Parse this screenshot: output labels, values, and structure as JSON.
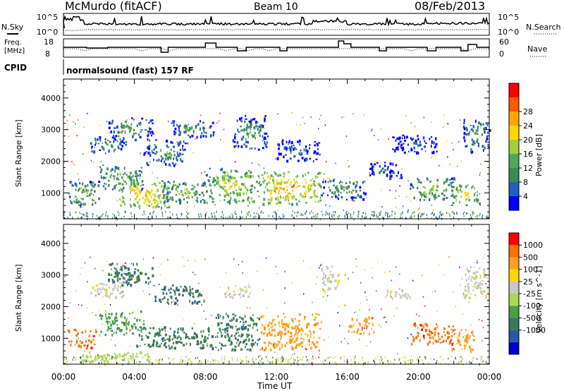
{
  "header": {
    "station": "McMurdo (fitACF)",
    "beam": "Beam 10",
    "date": "08/Feb/2013"
  },
  "sky_panel": {
    "left_label": "N.Sky",
    "right_label": "N.Search",
    "left_ticks": [
      "10^5",
      "10^0"
    ],
    "right_ticks": [
      "10^5",
      "10^0"
    ]
  },
  "freq_panel": {
    "left_label_1": "Freq.",
    "left_label_2": "[MHz]",
    "left_ticks": [
      "18",
      "8"
    ],
    "right_label": "Nave",
    "right_ticks": [
      "60",
      "0"
    ]
  },
  "cpid_panel": {
    "label": "CPID",
    "mode": "normalsound (fast) 157 RF"
  },
  "chart_data": [
    {
      "type": "heatmap",
      "title": "Power",
      "xlabel": "Time UT",
      "ylabel": "Slant Range [km]",
      "xlim": [
        0,
        24
      ],
      "ylim": [
        180,
        4600
      ],
      "x_ticks": [
        "00:00",
        "04:00",
        "08:00",
        "12:00",
        "16:00",
        "20:00",
        "00:00"
      ],
      "y_ticks": [
        1000,
        2000,
        3000,
        4000
      ],
      "colorbar": {
        "label": "Power [dB]",
        "ticks": [
          "4",
          "8",
          "12",
          "16",
          "20",
          "24",
          "28"
        ],
        "colors": [
          "#0000ff",
          "#2060c0",
          "#3a8a58",
          "#52a85a",
          "#9ed23c",
          "#ffd700",
          "#ffa500",
          "#ff5a00",
          "#ff0000"
        ]
      },
      "regions": [
        {
          "t": [
            0.2,
            2.0
          ],
          "r": [
            600,
            1400
          ],
          "level": 4
        },
        {
          "t": [
            1.5,
            3.5
          ],
          "r": [
            2300,
            2800
          ],
          "level": 3
        },
        {
          "t": [
            2.0,
            4.5
          ],
          "r": [
            1100,
            1900
          ],
          "level": 4
        },
        {
          "t": [
            2.5,
            5.0
          ],
          "r": [
            2700,
            3400
          ],
          "level": 3
        },
        {
          "t": [
            3.0,
            6.0
          ],
          "r": [
            550,
            1400
          ],
          "level": 6
        },
        {
          "t": [
            4.5,
            7.0
          ],
          "r": [
            1900,
            2700
          ],
          "level": 3
        },
        {
          "t": [
            5.5,
            8.0
          ],
          "r": [
            700,
            1400
          ],
          "level": 4
        },
        {
          "t": [
            6.0,
            8.5
          ],
          "r": [
            2800,
            3300
          ],
          "level": 3
        },
        {
          "t": [
            8.0,
            11.0
          ],
          "r": [
            700,
            1800
          ],
          "level": 5
        },
        {
          "t": [
            9.5,
            11.5
          ],
          "r": [
            2400,
            3500
          ],
          "level": 3
        },
        {
          "t": [
            11.0,
            14.5
          ],
          "r": [
            650,
            1700
          ],
          "level": 6
        },
        {
          "t": [
            12.0,
            14.5
          ],
          "r": [
            2000,
            2700
          ],
          "level": 2
        },
        {
          "t": [
            14.5,
            17.0
          ],
          "r": [
            800,
            1500
          ],
          "level": 3
        },
        {
          "t": [
            17.0,
            19.0
          ],
          "r": [
            1500,
            2000
          ],
          "level": 2
        },
        {
          "t": [
            18.5,
            21.0
          ],
          "r": [
            2300,
            2900
          ],
          "level": 2
        },
        {
          "t": [
            19.5,
            22.0
          ],
          "r": [
            800,
            1500
          ],
          "level": 4
        },
        {
          "t": [
            21.8,
            23.5
          ],
          "r": [
            600,
            1300
          ],
          "level": 5
        },
        {
          "t": [
            22.5,
            24.0
          ],
          "r": [
            2300,
            3400
          ],
          "level": 3
        }
      ]
    },
    {
      "type": "heatmap",
      "title": "Velocity",
      "xlabel": "Time UT",
      "ylabel": "Slant Range [km]",
      "xlim": [
        0,
        24
      ],
      "ylim": [
        180,
        4600
      ],
      "x_ticks": [
        "00:00",
        "04:00",
        "08:00",
        "12:00",
        "16:00",
        "20:00",
        "00:00"
      ],
      "y_ticks": [
        1000,
        2000,
        3000,
        4000
      ],
      "colorbar": {
        "label": "Velocity [m s^-1]",
        "ticks": [
          "1000",
          "500",
          "100",
          "25",
          "-25",
          "-100",
          "-500",
          "-1000"
        ],
        "colors": [
          "#0000cc",
          "#2858a8",
          "#3a7a58",
          "#48a048",
          "#a8d850",
          "#c8c8c8",
          "#ffd700",
          "#ffa020",
          "#ff7000",
          "#ff0000"
        ]
      },
      "regions": [
        {
          "t": [
            0.2,
            1.8
          ],
          "r": [
            700,
            1300
          ],
          "level": 8
        },
        {
          "t": [
            1.0,
            5.0
          ],
          "r": [
            280,
            600
          ],
          "level": 4
        },
        {
          "t": [
            1.5,
            3.5
          ],
          "r": [
            2300,
            2800
          ],
          "level": 5
        },
        {
          "t": [
            2.0,
            4.5
          ],
          "r": [
            1100,
            1900
          ],
          "level": 3
        },
        {
          "t": [
            2.5,
            5.0
          ],
          "r": [
            2700,
            3400
          ],
          "level": 2
        },
        {
          "t": [
            4.0,
            8.5
          ],
          "r": [
            700,
            1400
          ],
          "level": 2
        },
        {
          "t": [
            5.0,
            8.0
          ],
          "r": [
            2100,
            2700
          ],
          "level": 2
        },
        {
          "t": [
            8.5,
            11.0
          ],
          "r": [
            650,
            1800
          ],
          "level": 2
        },
        {
          "t": [
            9.0,
            10.5
          ],
          "r": [
            2300,
            2700
          ],
          "level": 5
        },
        {
          "t": [
            11.0,
            14.5
          ],
          "r": [
            650,
            1800
          ],
          "level": 7
        },
        {
          "t": [
            14.5,
            15.5
          ],
          "r": [
            2500,
            3300
          ],
          "level": 5
        },
        {
          "t": [
            16.0,
            17.5
          ],
          "r": [
            1100,
            1700
          ],
          "level": 7
        },
        {
          "t": [
            18.0,
            19.5
          ],
          "r": [
            2300,
            2600
          ],
          "level": 5
        },
        {
          "t": [
            19.5,
            22.0
          ],
          "r": [
            800,
            1500
          ],
          "level": 8
        },
        {
          "t": [
            21.8,
            23.2
          ],
          "r": [
            600,
            1300
          ],
          "level": 7
        },
        {
          "t": [
            22.5,
            24.0
          ],
          "r": [
            2300,
            3300
          ],
          "level": 5
        }
      ]
    }
  ]
}
